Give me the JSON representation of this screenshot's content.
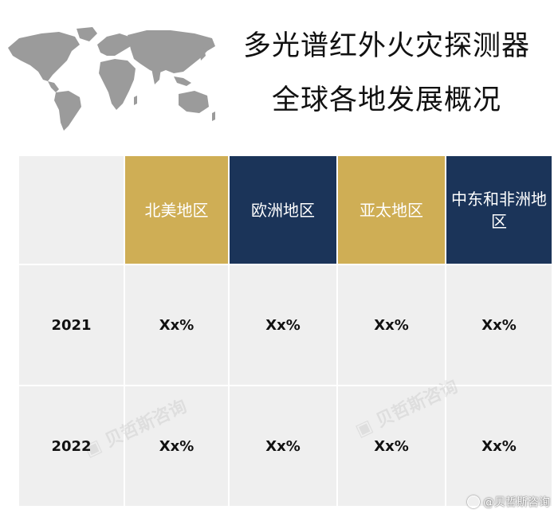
{
  "title": {
    "line1": "多光谱红外火灾探测器",
    "line2": "全球各地发展概况"
  },
  "icons": {
    "map": "world-map-icon",
    "logo": "weibo-logo-icon"
  },
  "table": {
    "headers": [
      "北美地区",
      "欧洲地区",
      "亚太地区",
      "中东和非洲地区"
    ],
    "header_colors": [
      "#cfae55",
      "#1b3459",
      "#cfae55",
      "#1b3459"
    ],
    "rows": [
      {
        "year": "2021",
        "values": [
          "Xx%",
          "Xx%",
          "Xx%",
          "Xx%"
        ]
      },
      {
        "year": "2022",
        "values": [
          "Xx%",
          "Xx%",
          "Xx%",
          "Xx%"
        ]
      }
    ]
  },
  "source": "@贝哲斯咨询"
}
